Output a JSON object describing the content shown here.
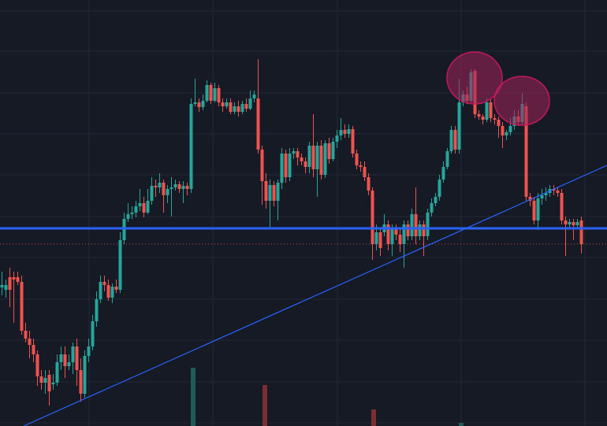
{
  "chart_data": {
    "type": "candlestick",
    "title": "",
    "xlabel": "",
    "ylabel": "",
    "ylim": [
      0,
      541
    ],
    "grid": true,
    "colors": {
      "background": "#161a25",
      "grid": "#232836",
      "up": "#26a69a",
      "down": "#ef5350",
      "volume_up": "#1f5c57",
      "volume_down": "#7a2e32",
      "support_line": "#2962ff",
      "trendline": "#2962ff",
      "dotted_level": "#ef5350",
      "highlight_fill": "#a2245a",
      "highlight_stroke": "#c2185b"
    },
    "candles": [
      [
        2.5,
        365,
        362,
        345,
        375
      ],
      [
        7.5,
        368,
        362,
        355,
        378
      ],
      [
        12.5,
        352,
        368,
        340,
        390
      ],
      [
        17.5,
        352,
        355,
        345,
        410
      ],
      [
        22.5,
        352,
        358,
        345,
        362
      ],
      [
        27.5,
        358,
        420,
        350,
        425
      ],
      [
        32.5,
        420,
        430,
        410,
        435
      ],
      [
        37.5,
        430,
        438,
        420,
        455
      ],
      [
        42.5,
        438,
        450,
        430,
        460
      ],
      [
        47.5,
        450,
        478,
        445,
        490
      ],
      [
        52.5,
        478,
        486,
        470,
        495
      ],
      [
        57.5,
        486,
        480,
        470,
        500
      ],
      [
        62.5,
        476,
        497,
        470,
        515
      ],
      [
        67.5,
        488,
        486,
        475,
        495
      ],
      [
        72.5,
        486,
        460,
        450,
        490
      ],
      [
        77.5,
        460,
        450,
        440,
        470
      ],
      [
        82.5,
        450,
        465,
        440,
        480
      ],
      [
        87.5,
        465,
        460,
        450,
        470
      ],
      [
        92.5,
        460,
        440,
        435,
        475
      ],
      [
        97.5,
        440,
        470,
        430,
        490
      ],
      [
        102.5,
        470,
        500,
        455,
        510
      ],
      [
        107.5,
        500,
        452,
        445,
        505
      ],
      [
        112.5,
        452,
        440,
        430,
        460
      ],
      [
        117.5,
        440,
        408,
        400,
        445
      ],
      [
        122.5,
        408,
        380,
        370,
        415
      ],
      [
        127.5,
        380,
        358,
        350,
        385
      ],
      [
        132.5,
        358,
        362,
        350,
        370
      ],
      [
        137.5,
        362,
        378,
        355,
        382
      ],
      [
        142.5,
        378,
        364,
        360,
        385
      ],
      [
        147.5,
        364,
        368,
        355,
        372
      ],
      [
        152.5,
        368,
        305,
        295,
        372
      ],
      [
        157.5,
        305,
        278,
        270,
        310
      ],
      [
        162.5,
        278,
        272,
        258,
        282
      ],
      [
        167.5,
        272,
        270,
        262,
        278
      ],
      [
        172.5,
        270,
        262,
        255,
        276
      ],
      [
        177.5,
        262,
        258,
        240,
        268
      ],
      [
        182.5,
        258,
        270,
        250,
        276
      ],
      [
        187.5,
        270,
        255,
        240,
        272
      ],
      [
        192.5,
        255,
        236,
        225,
        260
      ],
      [
        197.5,
        236,
        238,
        228,
        250
      ],
      [
        202.5,
        238,
        232,
        220,
        245
      ],
      [
        207.5,
        232,
        248,
        228,
        270
      ],
      [
        212.5,
        248,
        240,
        235,
        258
      ],
      [
        217.5,
        240,
        238,
        225,
        275
      ],
      [
        222.5,
        238,
        234,
        228,
        242
      ],
      [
        227.5,
        234,
        240,
        230,
        245
      ],
      [
        232.5,
        240,
        236,
        230,
        258
      ],
      [
        237.5,
        236,
        240,
        232,
        248
      ],
      [
        242.5,
        240,
        132,
        125,
        245
      ],
      [
        247.5,
        132,
        130,
        100,
        135
      ],
      [
        252.5,
        130,
        136,
        125,
        142
      ],
      [
        257.5,
        136,
        128,
        120,
        140
      ],
      [
        262.5,
        128,
        108,
        102,
        130
      ],
      [
        267.5,
        108,
        128,
        105,
        132
      ],
      [
        272.5,
        128,
        112,
        105,
        130
      ],
      [
        277.5,
        112,
        130,
        108,
        135
      ],
      [
        282.5,
        130,
        135,
        125,
        142
      ],
      [
        287.5,
        135,
        130,
        125,
        138
      ],
      [
        292.5,
        130,
        142,
        125,
        145
      ],
      [
        297.5,
        142,
        135,
        130,
        145
      ],
      [
        302.5,
        135,
        142,
        128,
        148
      ],
      [
        307.5,
        142,
        132,
        128,
        145
      ],
      [
        312.5,
        132,
        138,
        125,
        142
      ],
      [
        317.5,
        138,
        125,
        115,
        140
      ],
      [
        322.5,
        125,
        120,
        115,
        130
      ],
      [
        327.5,
        125,
        190,
        75,
        195
      ],
      [
        332.5,
        190,
        230,
        185,
        260
      ],
      [
        337.5,
        230,
        255,
        220,
        265
      ],
      [
        342.5,
        255,
        235,
        228,
        290
      ],
      [
        347.5,
        235,
        255,
        230,
        262
      ],
      [
        352.5,
        255,
        232,
        228,
        280
      ],
      [
        357.5,
        232,
        195,
        188,
        240
      ],
      [
        362.5,
        195,
        225,
        190,
        232
      ],
      [
        367.5,
        225,
        195,
        188,
        230
      ],
      [
        372.5,
        195,
        192,
        188,
        202
      ],
      [
        377.5,
        192,
        200,
        188,
        210
      ],
      [
        382.5,
        200,
        205,
        195,
        210
      ],
      [
        387.5,
        205,
        212,
        200,
        220
      ],
      [
        392.5,
        212,
        185,
        180,
        220
      ],
      [
        397.5,
        185,
        215,
        145,
        225
      ],
      [
        402.5,
        215,
        185,
        180,
        250
      ],
      [
        407.5,
        185,
        222,
        178,
        228
      ],
      [
        412.5,
        222,
        182,
        178,
        226
      ],
      [
        417.5,
        182,
        202,
        175,
        208
      ],
      [
        422.5,
        202,
        180,
        175,
        205
      ],
      [
        427.5,
        180,
        172,
        165,
        188
      ],
      [
        432.5,
        172,
        165,
        150,
        178
      ],
      [
        437.5,
        165,
        170,
        158,
        175
      ],
      [
        442.5,
        170,
        164,
        158,
        175
      ],
      [
        447.5,
        164,
        195,
        160,
        200
      ],
      [
        452.5,
        195,
        210,
        190,
        215
      ],
      [
        457.5,
        210,
        212,
        205,
        218
      ],
      [
        462.5,
        212,
        225,
        205,
        230
      ],
      [
        467.5,
        225,
        242,
        220,
        248
      ],
      [
        472.5,
        242,
        310,
        238,
        330
      ],
      [
        477.5,
        310,
        295,
        285,
        318
      ],
      [
        482.5,
        295,
        315,
        290,
        325
      ],
      [
        487.5,
        295,
        285,
        272,
        300
      ],
      [
        492.5,
        285,
        310,
        280,
        318
      ],
      [
        497.5,
        310,
        290,
        285,
        325
      ],
      [
        502.5,
        290,
        298,
        285,
        305
      ],
      [
        507.5,
        298,
        310,
        290,
        320
      ],
      [
        512.5,
        310,
        285,
        280,
        340
      ],
      [
        517.5,
        285,
        300,
        280,
        305
      ],
      [
        522.5,
        300,
        272,
        265,
        305
      ],
      [
        527.5,
        272,
        300,
        238,
        310
      ],
      [
        532.5,
        300,
        285,
        280,
        305
      ],
      [
        537.5,
        285,
        300,
        280,
        325
      ],
      [
        542.5,
        300,
        270,
        265,
        305
      ],
      [
        547.5,
        270,
        258,
        252,
        275
      ],
      [
        552.5,
        258,
        250,
        245,
        262
      ],
      [
        557.5,
        250,
        228,
        222,
        255
      ],
      [
        562.5,
        228,
        212,
        205,
        232
      ],
      [
        567.5,
        212,
        192,
        188,
        215
      ],
      [
        572.5,
        192,
        165,
        160,
        195
      ],
      [
        577.5,
        165,
        190,
        160,
        195
      ],
      [
        582.5,
        190,
        130,
        100,
        195
      ],
      [
        587.5,
        130,
        120,
        115,
        135
      ],
      [
        592.5,
        120,
        128,
        110,
        132
      ],
      [
        597.5,
        128,
        92,
        88,
        130
      ],
      [
        602.5,
        90,
        145,
        88,
        150
      ],
      [
        607.5,
        145,
        148,
        140,
        152
      ],
      [
        612.5,
        148,
        152,
        145,
        158
      ],
      [
        617.5,
        152,
        130,
        125,
        155
      ],
      [
        622.5,
        130,
        150,
        125,
        155
      ],
      [
        627.5,
        150,
        152,
        145,
        158
      ],
      [
        632.5,
        152,
        160,
        148,
        175
      ],
      [
        637.5,
        160,
        172,
        155,
        188
      ],
      [
        642.5,
        172,
        168,
        165,
        178
      ],
      [
        647.5,
        168,
        160,
        150,
        172
      ],
      [
        652.5,
        160,
        148,
        140,
        165
      ],
      [
        657.5,
        148,
        155,
        140,
        160
      ],
      [
        662.5,
        155,
        132,
        118,
        158
      ],
      [
        667.5,
        135,
        250,
        130,
        255
      ],
      [
        672.5,
        250,
        255,
        245,
        262
      ],
      [
        677.5,
        255,
        280,
        250,
        285
      ],
      [
        682.5,
        280,
        252,
        245,
        292
      ],
      [
        687.5,
        252,
        248,
        240,
        260
      ],
      [
        692.5,
        248,
        245,
        238,
        255
      ],
      [
        697.5,
        245,
        240,
        235,
        250
      ],
      [
        702.5,
        240,
        242,
        235,
        248
      ],
      [
        707.5,
        242,
        245,
        238,
        250
      ],
      [
        712.5,
        245,
        280,
        240,
        285
      ],
      [
        717.5,
        280,
        285,
        275,
        325
      ],
      [
        722.5,
        285,
        282,
        278,
        290
      ],
      [
        727.5,
        282,
        286,
        278,
        305
      ],
      [
        732.5,
        286,
        282,
        278,
        290
      ],
      [
        737.5,
        280,
        310,
        275,
        322
      ]
    ],
    "volume": [
      [
        245,
        467,
        "up"
      ],
      [
        336,
        489,
        "down"
      ],
      [
        474,
        520,
        "down"
      ],
      [
        585,
        537,
        "up"
      ]
    ],
    "support_level": 290,
    "dotted_level": 310,
    "trendline": [
      [
        30,
        541
      ],
      [
        770,
        210
      ]
    ],
    "highlights": [
      {
        "cx": 602,
        "cy": 99,
        "rx": 35,
        "ry": 33
      },
      {
        "cx": 662,
        "cy": 128,
        "rx": 35,
        "ry": 31
      }
    ]
  }
}
